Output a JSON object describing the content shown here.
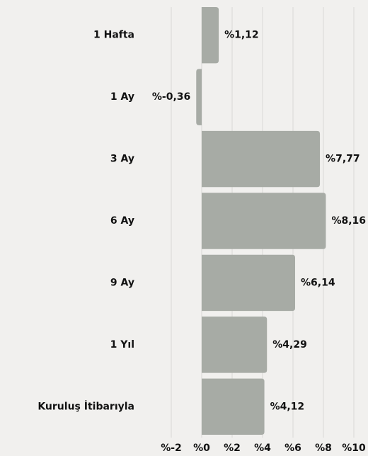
{
  "chart_data": {
    "type": "bar",
    "orientation": "horizontal",
    "categories": [
      "1 Hafta",
      "1 Ay",
      "3 Ay",
      "6 Ay",
      "9 Ay",
      "1 Yıl",
      "Kuruluş İtibarıyla"
    ],
    "values": [
      1.12,
      -0.36,
      7.77,
      8.16,
      6.14,
      4.29,
      4.12
    ],
    "value_labels": [
      "%1,12",
      "%-0,36",
      "%7,77",
      "%8,16",
      "%6,14",
      "%4,29",
      "%4,12"
    ],
    "color": "#a7aba5",
    "xlim": [
      -2,
      10
    ],
    "xticks": [
      {
        "value": -2,
        "label": "%-2"
      },
      {
        "value": 0,
        "label": "%0"
      },
      {
        "value": 2,
        "label": "%2"
      },
      {
        "value": 4,
        "label": "%4"
      },
      {
        "value": 6,
        "label": "%6"
      },
      {
        "value": 8,
        "label": "%8"
      },
      {
        "value": 10,
        "label": "%10"
      }
    ],
    "grid": true
  }
}
